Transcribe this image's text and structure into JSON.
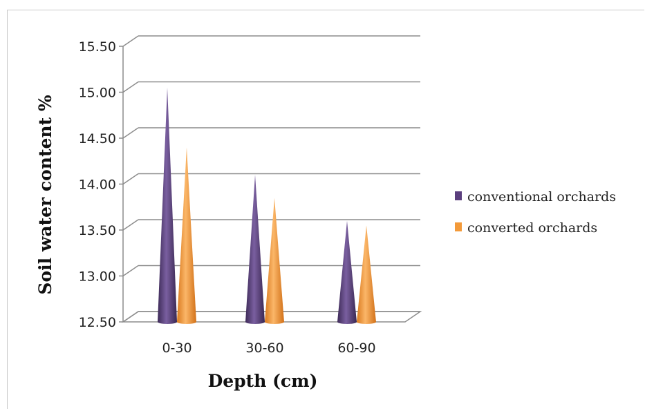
{
  "chart_data": {
    "type": "bar",
    "style": "3d-cone",
    "title": "",
    "xlabel": "Depth (cm)",
    "ylabel": "Soil water content %",
    "categories": [
      "0-30",
      "30-60",
      "60-90"
    ],
    "ylim": [
      12.5,
      15.5
    ],
    "yticks": [
      "12.50",
      "13.00",
      "13.50",
      "14.00",
      "14.50",
      "15.00",
      "15.50"
    ],
    "grid": true,
    "legend_position": "right",
    "series": [
      {
        "name": "conventional orchards",
        "color": "#5b3f7e",
        "values": [
          15.05,
          14.1,
          13.6
        ]
      },
      {
        "name": "converted orchards",
        "color": "#f39a3a",
        "values": [
          14.4,
          13.85,
          13.55
        ]
      }
    ]
  }
}
